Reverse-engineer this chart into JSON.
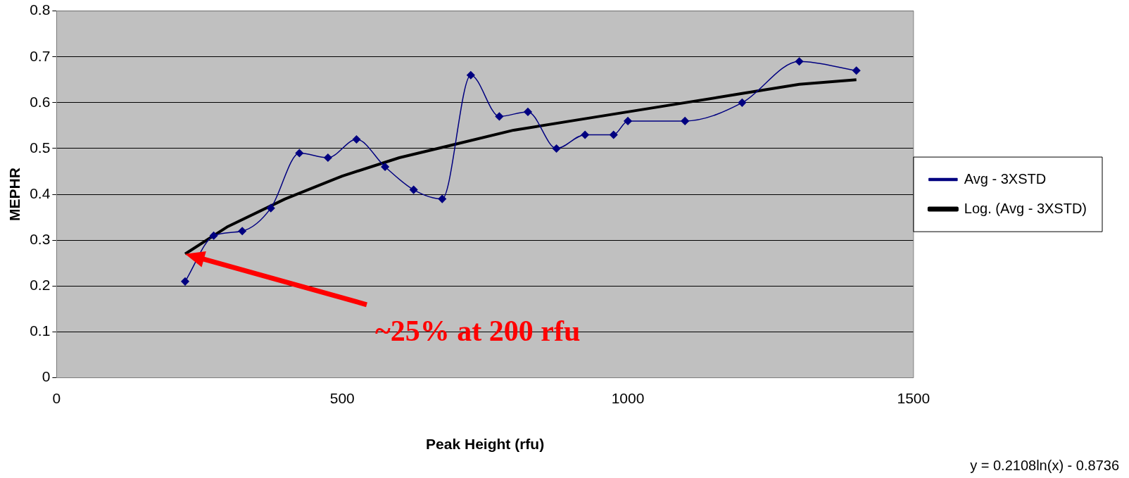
{
  "chart_data": {
    "type": "line",
    "xlabel": "Peak Height (rfu)",
    "ylabel": "MEPHR",
    "xlim": [
      0,
      1500
    ],
    "xticks": [
      0,
      500,
      1000,
      1500
    ],
    "ylim": [
      0,
      0.8
    ],
    "yticks": [
      0,
      0.1,
      0.2,
      0.3,
      0.4,
      0.5,
      0.6,
      0.7,
      0.8
    ],
    "grid": "y",
    "legend": "right",
    "marker": "diamond",
    "series": [
      {
        "name": "Avg - 3XSTD",
        "color": "#000080",
        "x": [
          225,
          275,
          325,
          375,
          425,
          475,
          525,
          575,
          625,
          675,
          725,
          775,
          825,
          875,
          925,
          975,
          1000,
          1100,
          1200,
          1300,
          1400
        ],
        "values": [
          0.21,
          0.31,
          0.32,
          0.37,
          0.49,
          0.48,
          0.52,
          0.46,
          0.41,
          0.39,
          0.66,
          0.57,
          0.58,
          0.5,
          0.53,
          0.53,
          0.56,
          0.56,
          0.6,
          0.69,
          0.67
        ]
      },
      {
        "name": "Log. (Avg - 3XSTD)",
        "color": "#000000",
        "marker": "none",
        "x": [
          225,
          300,
          400,
          500,
          600,
          700,
          800,
          900,
          1000,
          1100,
          1200,
          1300,
          1400
        ],
        "values": [
          0.27,
          0.33,
          0.39,
          0.44,
          0.48,
          0.51,
          0.54,
          0.56,
          0.58,
          0.6,
          0.62,
          0.64,
          0.65
        ]
      }
    ],
    "annotations": [
      "~25% at 200 rfu",
      "y = 0.2108ln(x) - 0.8736"
    ]
  }
}
